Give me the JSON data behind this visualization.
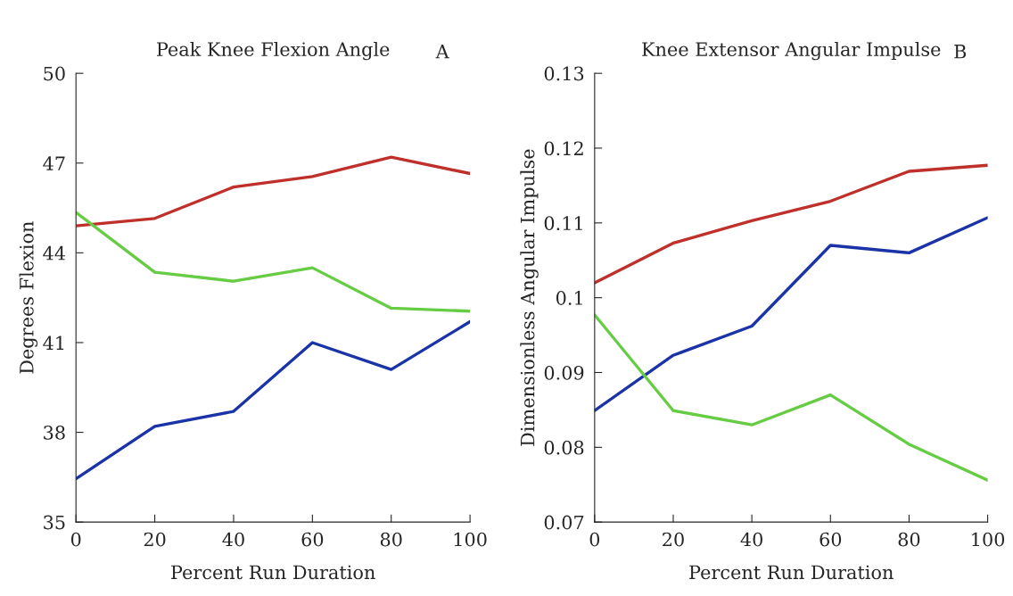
{
  "chart_data": [
    {
      "type": "line",
      "title": "Peak Knee Flexion Angle",
      "annotations": [
        "A"
      ],
      "xlabel": "Percent Run Duration",
      "ylabel": "Degrees Flexion",
      "x": [
        0,
        20,
        40,
        60,
        80,
        100
      ],
      "series": [
        {
          "color": "#c0302a",
          "values": [
            44.9,
            45.15,
            46.2,
            46.55,
            47.2,
            46.65
          ]
        },
        {
          "color": "#66cc44",
          "values": [
            45.35,
            43.35,
            43.05,
            43.5,
            42.15,
            42.05
          ]
        },
        {
          "color": "#1a34a8",
          "values": [
            36.45,
            38.2,
            38.7,
            41.0,
            40.1,
            41.7
          ]
        }
      ],
      "xlim": [
        0,
        100
      ],
      "xticks": [
        0,
        20,
        40,
        60,
        80,
        100
      ],
      "ylim": [
        35,
        50
      ],
      "yticks": [
        35,
        38,
        41,
        44,
        47,
        50
      ],
      "grid": false
    },
    {
      "type": "line",
      "title": "Knee Extensor Angular Impulse",
      "annotations": [
        "B"
      ],
      "xlabel": "Percent Run Duration",
      "ylabel": "Dimensionless Angular Impulse",
      "x": [
        0,
        20,
        40,
        60,
        80,
        100
      ],
      "series": [
        {
          "color": "#c0302a",
          "values": [
            0.102,
            0.1073,
            0.1103,
            0.1129,
            0.1169,
            0.1177
          ]
        },
        {
          "color": "#1a34a8",
          "values": [
            0.0849,
            0.0923,
            0.0962,
            0.107,
            0.106,
            0.1107
          ]
        },
        {
          "color": "#66cc44",
          "values": [
            0.0977,
            0.0849,
            0.083,
            0.087,
            0.0804,
            0.0756
          ]
        }
      ],
      "xlim": [
        0,
        100
      ],
      "xticks": [
        0,
        20,
        40,
        60,
        80,
        100
      ],
      "ylim": [
        0.07,
        0.13
      ],
      "yticks": [
        0.07,
        0.08,
        0.09,
        {
          "value": 0.1,
          "label": "0.1"
        },
        0.11,
        0.12,
        0.13
      ],
      "grid": false
    }
  ]
}
